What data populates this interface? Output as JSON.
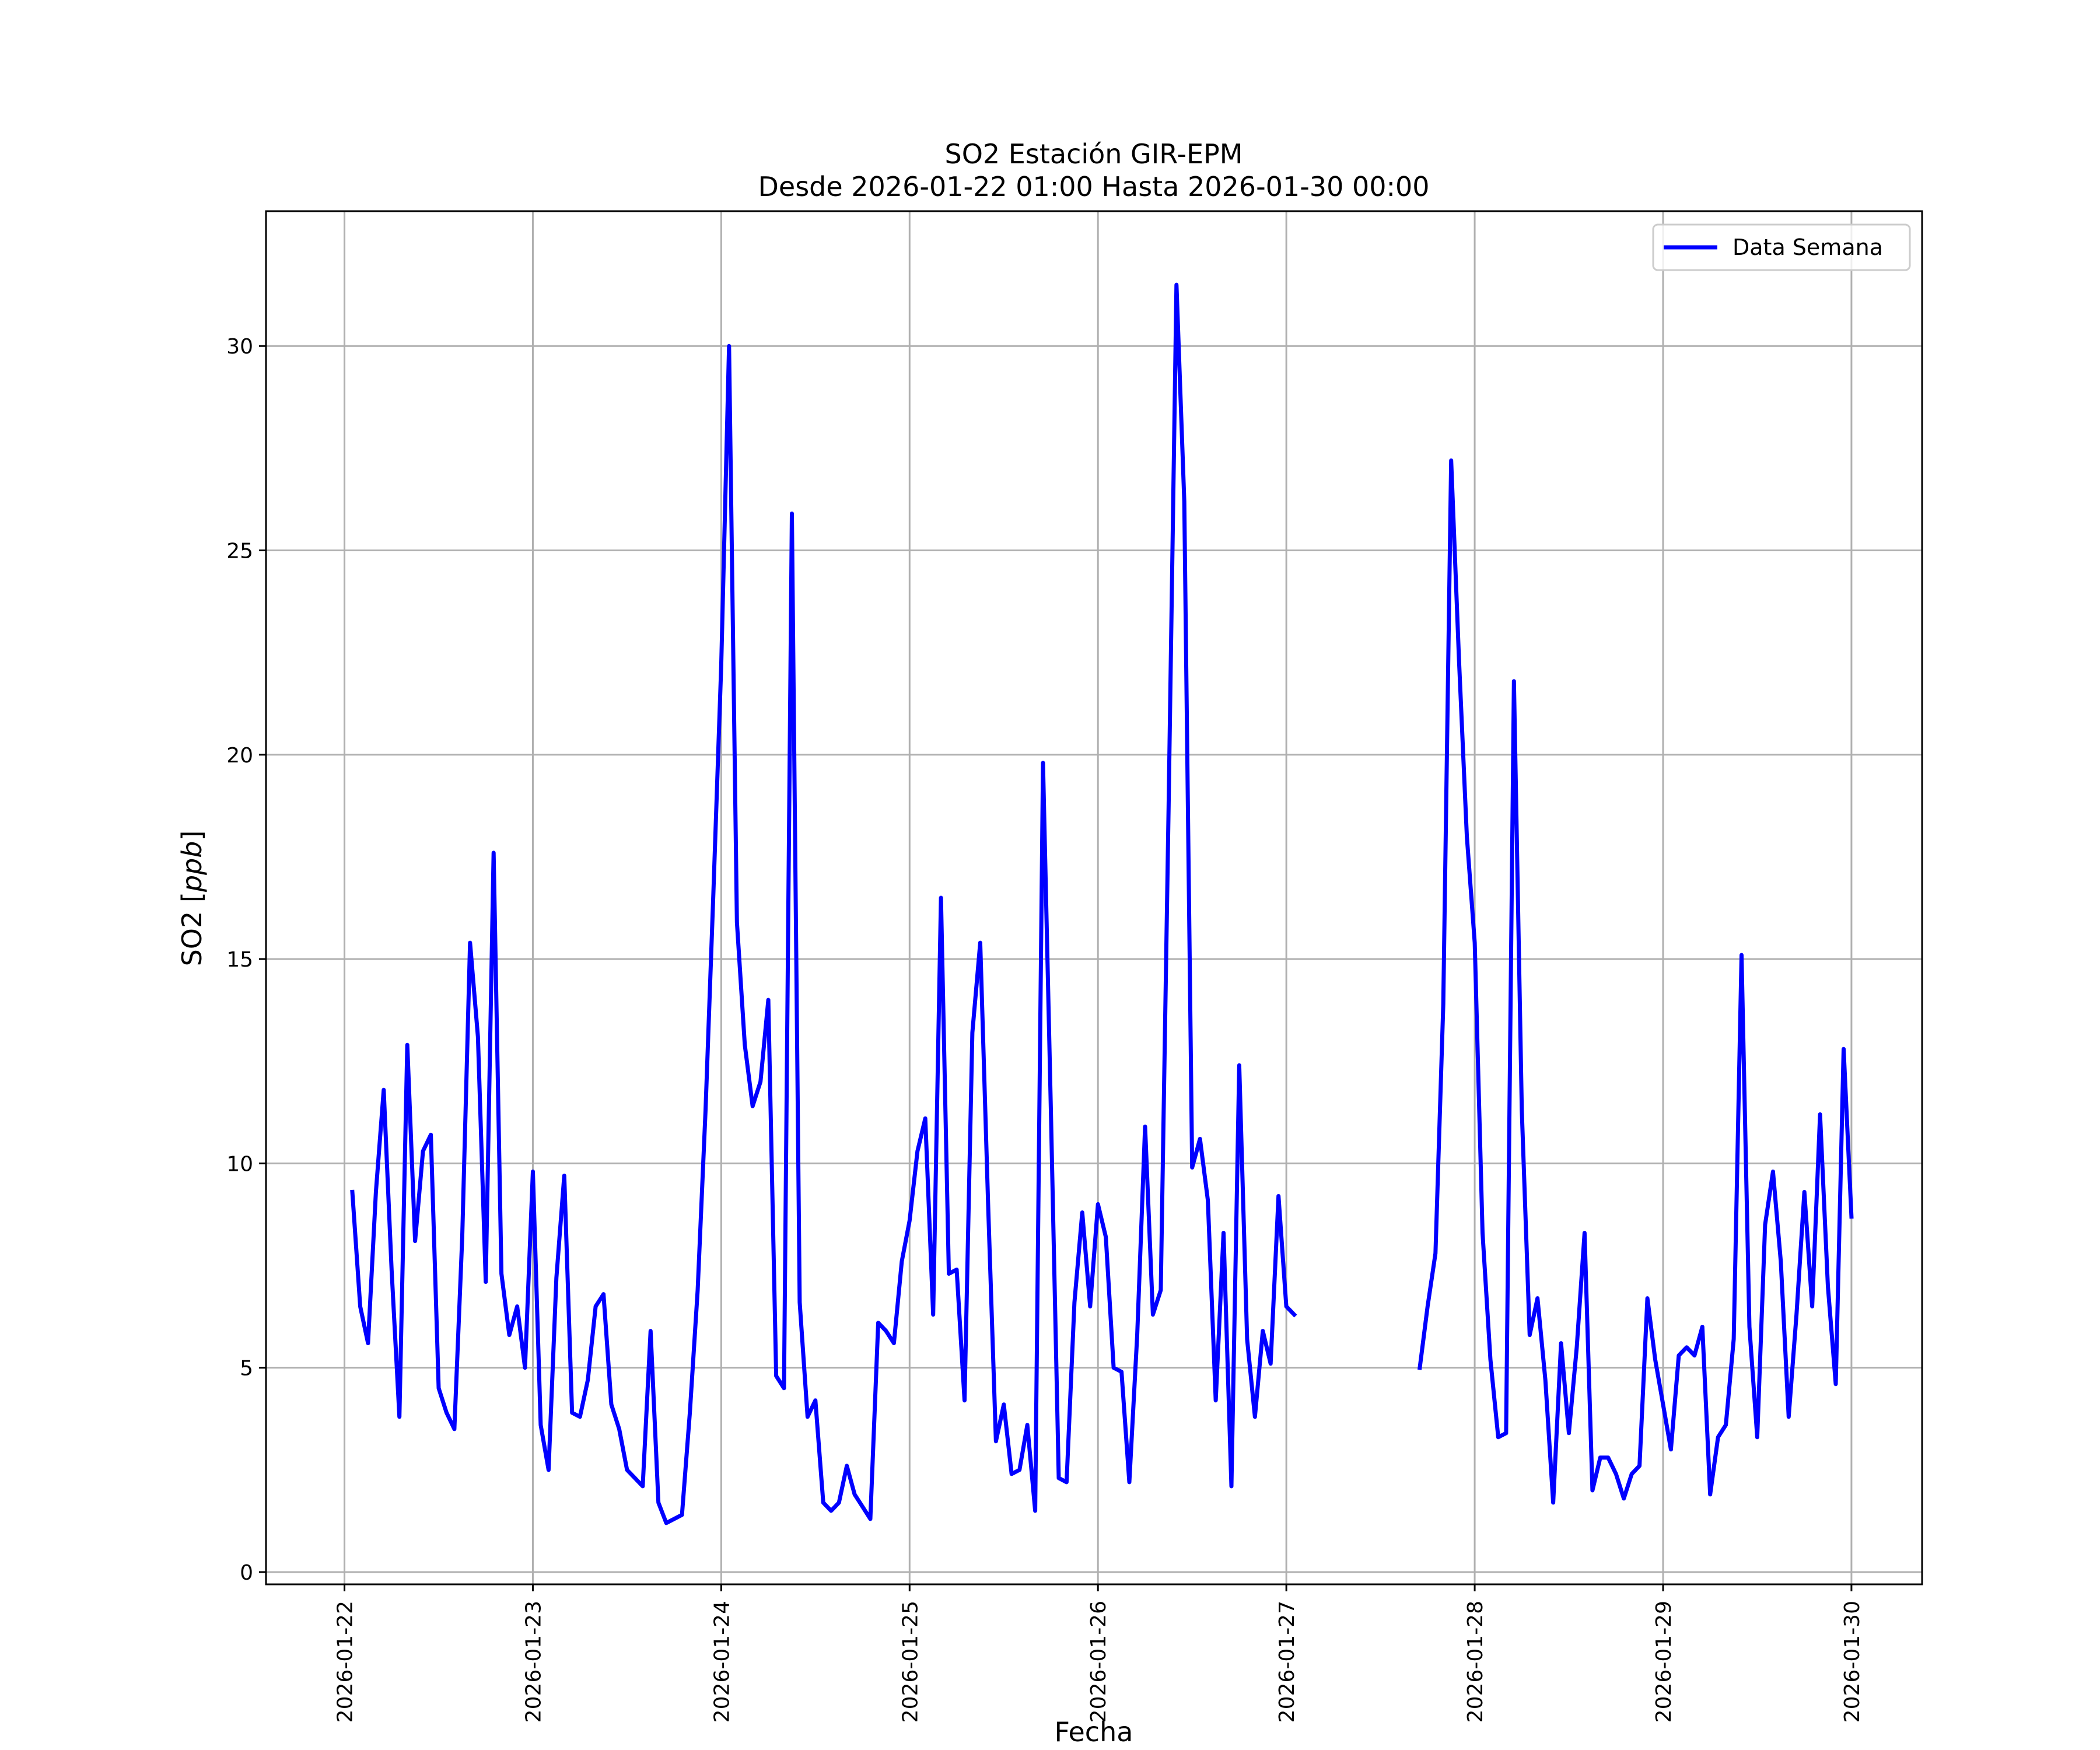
{
  "chart_data": {
    "type": "line",
    "title": "SO2 Estación GIR-EPM",
    "subtitle": "Desde 2026-01-22 01:00 Hasta 2026-01-30 00:00",
    "xlabel": "Fecha",
    "ylabel_main": "SO2 [",
    "ylabel_unit": "ppb",
    "ylabel_close": "]",
    "grid": true,
    "legend_position": "top-right",
    "line_color": "#0000ff",
    "ylim": [
      -0.3,
      33.3
    ],
    "xlim": [
      "2026-01-21 14:00",
      "2026-01-30 09:00"
    ],
    "x_ticks": [
      "2026-01-22",
      "2026-01-23",
      "2026-01-24",
      "2026-01-25",
      "2026-01-26",
      "2026-01-27",
      "2026-01-28",
      "2026-01-29",
      "2026-01-30"
    ],
    "y_ticks": [
      "0",
      "5",
      "10",
      "15",
      "20",
      "25",
      "30"
    ],
    "series": [
      {
        "name": "Data Semana",
        "x": [
          "2026-01-22 01:00",
          "2026-01-22 02:00",
          "2026-01-22 03:00",
          "2026-01-22 04:00",
          "2026-01-22 05:00",
          "2026-01-22 06:00",
          "2026-01-22 07:00",
          "2026-01-22 08:00",
          "2026-01-22 09:00",
          "2026-01-22 10:00",
          "2026-01-22 11:00",
          "2026-01-22 12:00",
          "2026-01-22 13:00",
          "2026-01-22 14:00",
          "2026-01-22 15:00",
          "2026-01-22 16:00",
          "2026-01-22 17:00",
          "2026-01-22 18:00",
          "2026-01-22 19:00",
          "2026-01-22 20:00",
          "2026-01-22 21:00",
          "2026-01-22 22:00",
          "2026-01-22 23:00",
          "2026-01-23 00:00",
          "2026-01-23 01:00",
          "2026-01-23 02:00",
          "2026-01-23 03:00",
          "2026-01-23 04:00",
          "2026-01-23 05:00",
          "2026-01-23 06:00",
          "2026-01-23 07:00",
          "2026-01-23 08:00",
          "2026-01-23 09:00",
          "2026-01-23 10:00",
          "2026-01-23 11:00",
          "2026-01-23 12:00",
          "2026-01-23 13:00",
          "2026-01-23 14:00",
          "2026-01-23 15:00",
          "2026-01-23 16:00",
          "2026-01-23 17:00",
          "2026-01-23 18:00",
          "2026-01-23 19:00",
          "2026-01-23 20:00",
          "2026-01-23 21:00",
          "2026-01-23 22:00",
          "2026-01-23 23:00",
          "2026-01-24 00:00",
          "2026-01-24 01:00",
          "2026-01-24 02:00",
          "2026-01-24 03:00",
          "2026-01-24 04:00",
          "2026-01-24 05:00",
          "2026-01-24 06:00",
          "2026-01-24 07:00",
          "2026-01-24 08:00",
          "2026-01-24 09:00",
          "2026-01-24 10:00",
          "2026-01-24 11:00",
          "2026-01-24 12:00",
          "2026-01-24 13:00",
          "2026-01-24 14:00",
          "2026-01-24 15:00",
          "2026-01-24 16:00",
          "2026-01-24 17:00",
          "2026-01-24 18:00",
          "2026-01-24 19:00",
          "2026-01-24 20:00",
          "2026-01-24 21:00",
          "2026-01-24 22:00",
          "2026-01-24 23:00",
          "2026-01-25 00:00",
          "2026-01-25 01:00",
          "2026-01-25 02:00",
          "2026-01-25 03:00",
          "2026-01-25 04:00",
          "2026-01-25 05:00",
          "2026-01-25 06:00",
          "2026-01-25 07:00",
          "2026-01-25 08:00",
          "2026-01-25 09:00",
          "2026-01-25 10:00",
          "2026-01-25 11:00",
          "2026-01-25 12:00",
          "2026-01-25 13:00",
          "2026-01-25 14:00",
          "2026-01-25 15:00",
          "2026-01-25 16:00",
          "2026-01-25 17:00",
          "2026-01-25 18:00",
          "2026-01-25 19:00",
          "2026-01-25 20:00",
          "2026-01-25 21:00",
          "2026-01-25 22:00",
          "2026-01-25 23:00",
          "2026-01-26 00:00",
          "2026-01-26 01:00",
          "2026-01-26 02:00",
          "2026-01-26 03:00",
          "2026-01-26 04:00",
          "2026-01-26 05:00",
          "2026-01-26 06:00",
          "2026-01-26 07:00",
          "2026-01-26 08:00",
          "2026-01-26 09:00",
          "2026-01-26 10:00",
          "2026-01-26 11:00",
          "2026-01-26 12:00",
          "2026-01-26 13:00",
          "2026-01-26 14:00",
          "2026-01-26 15:00",
          "2026-01-26 16:00",
          "2026-01-26 17:00",
          "2026-01-26 18:00",
          "2026-01-26 19:00",
          "2026-01-26 20:00",
          "2026-01-26 21:00",
          "2026-01-26 22:00",
          "2026-01-26 23:00",
          "2026-01-27 00:00",
          "2026-01-27 01:00",
          "2026-01-27 17:00",
          "2026-01-27 18:00",
          "2026-01-27 19:00",
          "2026-01-27 20:00",
          "2026-01-27 21:00",
          "2026-01-27 22:00",
          "2026-01-27 23:00",
          "2026-01-28 00:00",
          "2026-01-28 01:00",
          "2026-01-28 02:00",
          "2026-01-28 03:00",
          "2026-01-28 04:00",
          "2026-01-28 05:00",
          "2026-01-28 06:00",
          "2026-01-28 07:00",
          "2026-01-28 08:00",
          "2026-01-28 09:00",
          "2026-01-28 10:00",
          "2026-01-28 11:00",
          "2026-01-28 12:00",
          "2026-01-28 13:00",
          "2026-01-28 14:00",
          "2026-01-28 15:00",
          "2026-01-28 16:00",
          "2026-01-28 17:00",
          "2026-01-28 18:00",
          "2026-01-28 19:00",
          "2026-01-28 20:00",
          "2026-01-28 21:00",
          "2026-01-28 22:00",
          "2026-01-28 23:00",
          "2026-01-29 00:00",
          "2026-01-29 01:00",
          "2026-01-29 02:00",
          "2026-01-29 03:00",
          "2026-01-29 04:00",
          "2026-01-29 05:00",
          "2026-01-29 06:00",
          "2026-01-29 07:00",
          "2026-01-29 08:00",
          "2026-01-29 09:00",
          "2026-01-29 10:00",
          "2026-01-29 11:00",
          "2026-01-29 12:00",
          "2026-01-29 13:00",
          "2026-01-29 14:00",
          "2026-01-29 15:00",
          "2026-01-29 16:00",
          "2026-01-29 17:00",
          "2026-01-29 18:00",
          "2026-01-29 19:00",
          "2026-01-29 20:00",
          "2026-01-29 21:00",
          "2026-01-29 22:00",
          "2026-01-29 23:00",
          "2026-01-30 00:00"
        ],
        "values": [
          9.3,
          6.5,
          5.6,
          9.3,
          11.8,
          7.4,
          3.8,
          12.9,
          8.1,
          10.3,
          10.7,
          4.5,
          3.9,
          3.5,
          8.2,
          15.4,
          13.1,
          7.1,
          17.6,
          7.3,
          5.8,
          6.5,
          5.0,
          9.8,
          3.6,
          2.5,
          7.2,
          9.7,
          3.9,
          3.8,
          4.7,
          6.5,
          6.8,
          4.1,
          3.5,
          2.5,
          2.3,
          2.1,
          5.9,
          1.7,
          1.2,
          1.3,
          1.4,
          3.9,
          6.9,
          11.3,
          16.6,
          22.2,
          30.0,
          15.9,
          12.9,
          11.4,
          12.0,
          14.0,
          4.8,
          4.5,
          25.9,
          6.6,
          3.8,
          4.2,
          1.7,
          1.5,
          1.7,
          2.6,
          1.9,
          1.6,
          1.3,
          6.1,
          5.9,
          5.6,
          7.6,
          8.6,
          10.3,
          11.1,
          6.3,
          16.5,
          7.3,
          7.4,
          4.2,
          13.2,
          15.4,
          9.0,
          3.2,
          4.1,
          2.4,
          2.5,
          3.6,
          1.5,
          19.8,
          11.3,
          2.3,
          2.2,
          6.6,
          8.8,
          6.5,
          9.0,
          8.2,
          5.0,
          4.9,
          2.2,
          5.8,
          10.9,
          6.3,
          6.9,
          18.7,
          31.5,
          26.2,
          9.9,
          10.6,
          9.1,
          4.2,
          8.3,
          2.1,
          12.4,
          5.7,
          3.8,
          5.9,
          5.1,
          9.2,
          6.5,
          6.3,
          5.0,
          6.5,
          7.8,
          13.9,
          27.2,
          22.3,
          18.0,
          15.4,
          8.3,
          5.2,
          3.3,
          3.4,
          21.8,
          11.3,
          5.8,
          6.7,
          4.7,
          1.7,
          5.6,
          3.4,
          5.5,
          8.3,
          2.0,
          2.8,
          2.8,
          2.4,
          1.8,
          2.4,
          2.6,
          6.7,
          5.2,
          4.1,
          3.0,
          5.3,
          5.5,
          5.3,
          6.0,
          1.9,
          3.3,
          3.6,
          5.7,
          15.1,
          6.0,
          3.3,
          8.5,
          9.8,
          7.6,
          3.8,
          6.3,
          9.3,
          6.5,
          11.2,
          7.0,
          4.6,
          12.8,
          8.7
        ]
      }
    ]
  }
}
